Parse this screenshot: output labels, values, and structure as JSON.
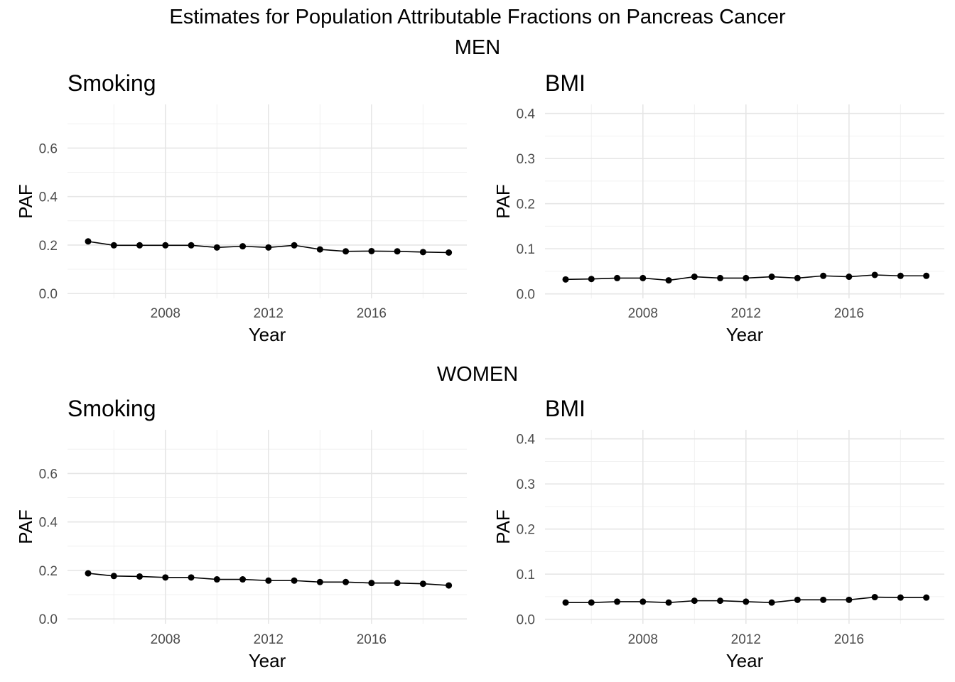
{
  "figure": {
    "title": "Estimates for Population Attributable Fractions on Pancreas Cancer",
    "sections": [
      "MEN",
      "WOMEN"
    ]
  },
  "chart_data": [
    {
      "type": "line",
      "section": "MEN",
      "title": "Smoking",
      "xlabel": "Year",
      "ylabel": "PAF",
      "x": [
        2005,
        2006,
        2007,
        2008,
        2009,
        2010,
        2011,
        2012,
        2013,
        2014,
        2015,
        2016,
        2017,
        2018,
        2019
      ],
      "values": [
        0.215,
        0.199,
        0.199,
        0.199,
        0.199,
        0.19,
        0.195,
        0.19,
        0.199,
        0.182,
        0.174,
        0.175,
        0.174,
        0.171,
        0.169
      ],
      "xlim": [
        2004.2,
        2019.7
      ],
      "ylim": [
        -0.02,
        0.78
      ],
      "xticks": [
        2008,
        2012,
        2016
      ],
      "yticks": [
        0.0,
        0.2,
        0.4,
        0.6
      ],
      "ytick_labels": [
        "0.0",
        "0.2",
        "0.4",
        "0.6"
      ],
      "grid": true,
      "color": "#000000"
    },
    {
      "type": "line",
      "section": "MEN",
      "title": "BMI",
      "xlabel": "Year",
      "ylabel": "PAF",
      "x": [
        2005,
        2006,
        2007,
        2008,
        2009,
        2010,
        2011,
        2012,
        2013,
        2014,
        2015,
        2016,
        2017,
        2018,
        2019
      ],
      "values": [
        0.032,
        0.033,
        0.035,
        0.035,
        0.03,
        0.038,
        0.035,
        0.035,
        0.038,
        0.035,
        0.04,
        0.038,
        0.042,
        0.04,
        0.04
      ],
      "xlim": [
        2004.2,
        2019.7
      ],
      "ylim": [
        -0.01,
        0.42
      ],
      "xticks": [
        2008,
        2012,
        2016
      ],
      "yticks": [
        0.0,
        0.1,
        0.2,
        0.3,
        0.4
      ],
      "ytick_labels": [
        "0.0",
        "0.1",
        "0.2",
        "0.3",
        "0.4"
      ],
      "grid": true,
      "color": "#000000"
    },
    {
      "type": "line",
      "section": "WOMEN",
      "title": "Smoking",
      "xlabel": "Year",
      "ylabel": "PAF",
      "x": [
        2005,
        2006,
        2007,
        2008,
        2009,
        2010,
        2011,
        2012,
        2013,
        2014,
        2015,
        2016,
        2017,
        2018,
        2019
      ],
      "values": [
        0.188,
        0.177,
        0.175,
        0.171,
        0.171,
        0.163,
        0.163,
        0.158,
        0.158,
        0.152,
        0.152,
        0.148,
        0.148,
        0.145,
        0.138
      ],
      "xlim": [
        2004.2,
        2019.7
      ],
      "ylim": [
        -0.02,
        0.78
      ],
      "xticks": [
        2008,
        2012,
        2016
      ],
      "yticks": [
        0.0,
        0.2,
        0.4,
        0.6
      ],
      "ytick_labels": [
        "0.0",
        "0.2",
        "0.4",
        "0.6"
      ],
      "grid": true,
      "color": "#000000"
    },
    {
      "type": "line",
      "section": "WOMEN",
      "title": "BMI",
      "xlabel": "Year",
      "ylabel": "PAF",
      "x": [
        2005,
        2006,
        2007,
        2008,
        2009,
        2010,
        2011,
        2012,
        2013,
        2014,
        2015,
        2016,
        2017,
        2018,
        2019
      ],
      "values": [
        0.037,
        0.037,
        0.039,
        0.039,
        0.037,
        0.041,
        0.041,
        0.039,
        0.037,
        0.043,
        0.043,
        0.043,
        0.049,
        0.048,
        0.048
      ],
      "xlim": [
        2004.2,
        2019.7
      ],
      "ylim": [
        -0.01,
        0.42
      ],
      "xticks": [
        2008,
        2012,
        2016
      ],
      "yticks": [
        0.0,
        0.1,
        0.2,
        0.3,
        0.4
      ],
      "ytick_labels": [
        "0.0",
        "0.1",
        "0.2",
        "0.3",
        "0.4"
      ],
      "grid": true,
      "color": "#000000"
    }
  ]
}
